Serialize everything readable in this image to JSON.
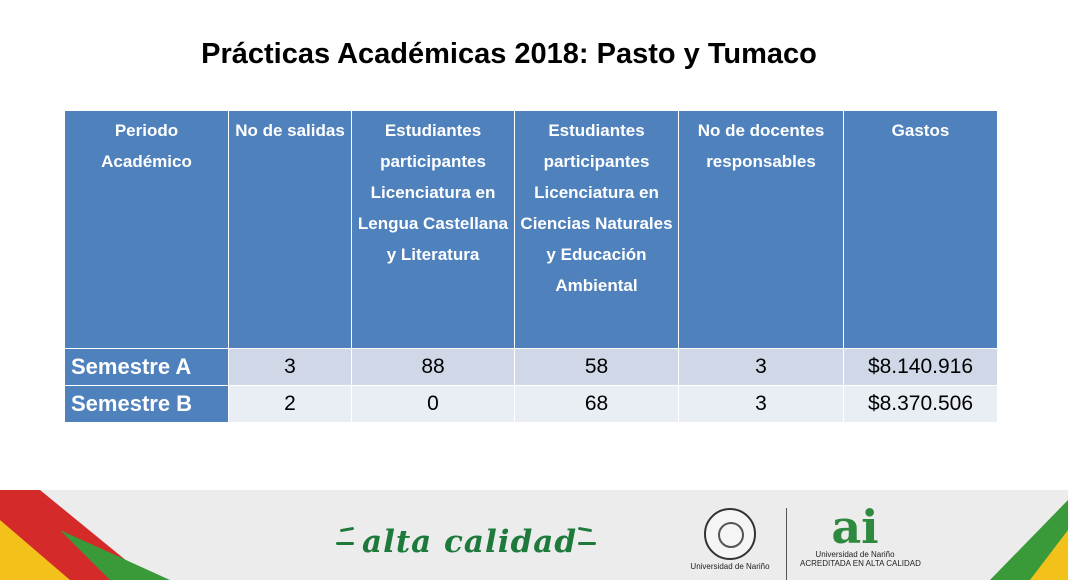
{
  "title": "Prácticas Académicas 2018: Pasto y Tumaco",
  "table": {
    "headers": [
      "Periodo Académico",
      "No de salidas",
      "Estudiantes participantes Licenciatura en Lengua Castellana y Literatura",
      "Estudiantes participantes Licenciatura en Ciencias Naturales y Educación Ambiental",
      "No de docentes responsables",
      "Gastos"
    ],
    "rows": [
      [
        "Semestre A",
        "3",
        "88",
        "58",
        "3",
        "$8.140.916"
      ],
      [
        "Semestre B",
        "2",
        "0",
        "68",
        "3",
        "$8.370.506"
      ]
    ]
  },
  "footer": {
    "brand_text": "alta calidad",
    "seal_caption": "Universidad de Nariño",
    "ai_logo_text": "ai",
    "ai_caption": "Universidad de Nariño",
    "ai_sub_caption": "ACREDITADA EN ALTA CALIDAD",
    "colors": {
      "header_blue": "#4f81bd",
      "brand_green": "#1d7a3a",
      "stripe_red": "#d42a2a",
      "stripe_yellow": "#f2c21b",
      "stripe_green": "#3a9a3a"
    }
  }
}
